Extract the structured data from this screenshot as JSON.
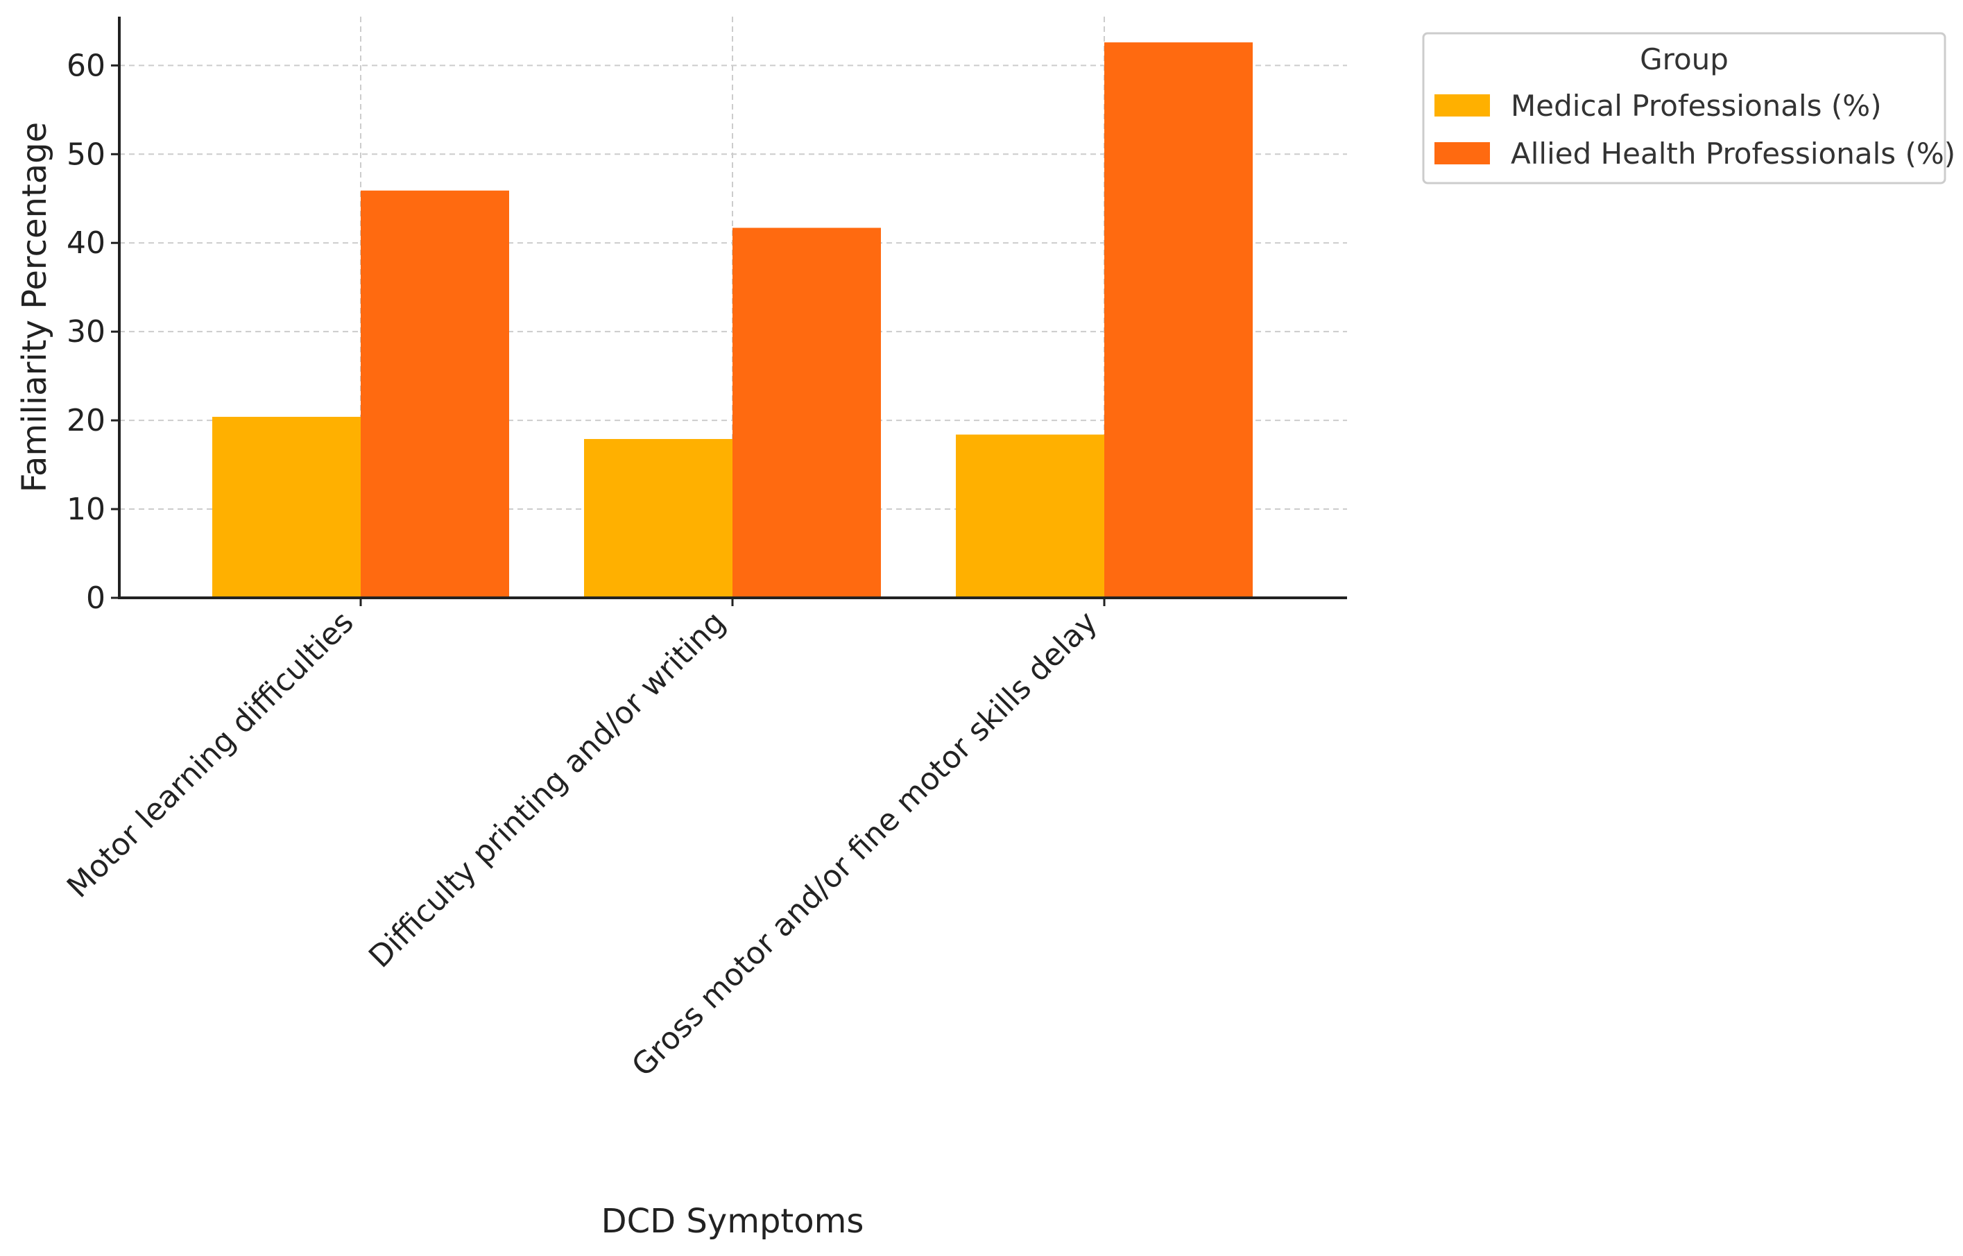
{
  "chart_data": {
    "type": "bar",
    "title": "",
    "xlabel": "DCD Symptoms",
    "ylabel": "Familiarity Percentage",
    "categories": [
      "Motor learning difficulties",
      "Difficulty printing and/or writing",
      "Gross motor and/or fine motor skills delay"
    ],
    "series": [
      {
        "name": "Medical Professionals (%)",
        "values": [
          20.4,
          17.9,
          18.4
        ],
        "color": "#FFB000"
      },
      {
        "name": "Allied Health Professionals (%)",
        "values": [
          45.9,
          41.7,
          62.6
        ],
        "color": "#FF6A10"
      }
    ],
    "ylim": [
      0,
      65.5
    ],
    "yticks": [
      0,
      10,
      20,
      30,
      40,
      50,
      60
    ],
    "grid": true,
    "legend": {
      "title": "Group",
      "placement": "outside-top-right"
    }
  }
}
